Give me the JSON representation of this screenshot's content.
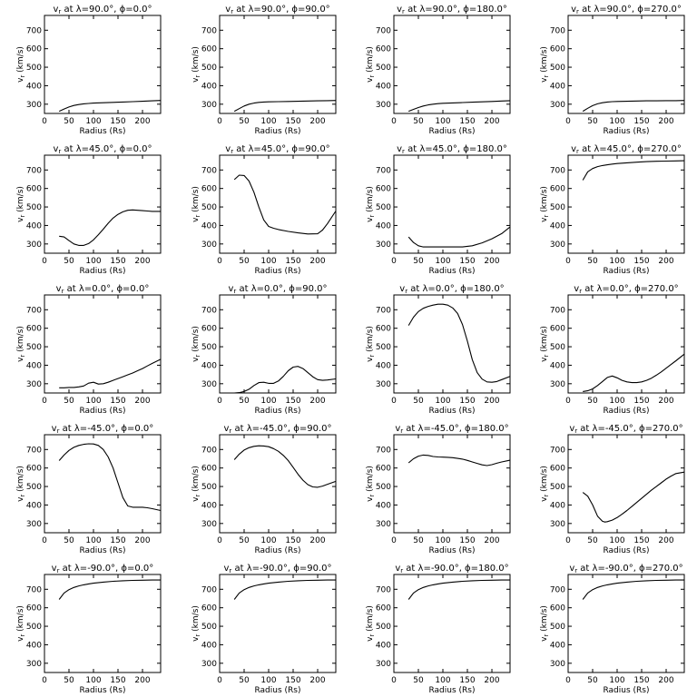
{
  "chart_data": {
    "type": "line",
    "rows": 5,
    "cols": 4,
    "xlabel": "Radius (Rs)",
    "ylabel": "v",
    "ylabel_sub": "r",
    "ylabel_unit": " (km/s)",
    "xlim": [
      0,
      237
    ],
    "ylim": [
      250,
      780
    ],
    "xticks": [
      0,
      50,
      100,
      150,
      200
    ],
    "yticks": [
      300,
      400,
      500,
      600,
      700
    ],
    "title_prefix": "v",
    "title_sub": "r",
    "title_mid": " at λ=",
    "title_sep": ", ϕ=",
    "degree": "°",
    "panels": [
      {
        "lat": "90.0",
        "lon": "0.0",
        "x": [
          30,
          40,
          50,
          60,
          70,
          80,
          90,
          100,
          120,
          140,
          160,
          180,
          200,
          220,
          237
        ],
        "y": [
          262,
          274,
          285,
          293,
          298,
          302,
          304,
          306,
          308,
          310,
          312,
          314,
          316,
          318,
          320
        ]
      },
      {
        "lat": "90.0",
        "lon": "90.0",
        "x": [
          30,
          40,
          50,
          60,
          70,
          80,
          90,
          100,
          120,
          140,
          160,
          180,
          200,
          220,
          237
        ],
        "y": [
          262,
          276,
          290,
          300,
          306,
          310,
          312,
          313,
          314,
          315,
          316,
          317,
          318,
          319,
          320
        ]
      },
      {
        "lat": "90.0",
        "lon": "180.0",
        "x": [
          30,
          40,
          50,
          60,
          70,
          80,
          90,
          100,
          120,
          140,
          160,
          180,
          200,
          220,
          237
        ],
        "y": [
          262,
          272,
          282,
          290,
          296,
          300,
          303,
          305,
          307,
          309,
          311,
          313,
          315,
          317,
          319
        ]
      },
      {
        "lat": "90.0",
        "lon": "270.0",
        "x": [
          30,
          40,
          50,
          60,
          70,
          80,
          90,
          100,
          120,
          140,
          160,
          180,
          200,
          220,
          237
        ],
        "y": [
          262,
          278,
          292,
          302,
          308,
          312,
          314,
          315,
          316,
          317,
          318,
          318,
          319,
          319,
          320
        ]
      },
      {
        "lat": "45.0",
        "lon": "0.0",
        "x": [
          30,
          40,
          50,
          60,
          70,
          80,
          90,
          100,
          110,
          120,
          130,
          140,
          150,
          160,
          170,
          180,
          190,
          200,
          210,
          220,
          237
        ],
        "y": [
          342,
          338,
          318,
          300,
          292,
          292,
          302,
          322,
          350,
          380,
          412,
          440,
          460,
          474,
          482,
          484,
          482,
          480,
          478,
          476,
          476
        ]
      },
      {
        "lat": "45.0",
        "lon": "90.0",
        "x": [
          30,
          40,
          50,
          60,
          70,
          80,
          90,
          100,
          110,
          120,
          140,
          160,
          180,
          200,
          210,
          220,
          237
        ],
        "y": [
          648,
          672,
          670,
          640,
          580,
          500,
          430,
          395,
          385,
          378,
          368,
          360,
          354,
          355,
          375,
          410,
          478
        ]
      },
      {
        "lat": "45.0",
        "lon": "180.0",
        "x": [
          30,
          40,
          50,
          60,
          70,
          80,
          100,
          120,
          140,
          160,
          180,
          200,
          220,
          237
        ],
        "y": [
          338,
          308,
          290,
          284,
          284,
          284,
          284,
          284,
          284,
          290,
          306,
          328,
          356,
          392
        ]
      },
      {
        "lat": "45.0",
        "lon": "270.0",
        "x": [
          30,
          40,
          50,
          60,
          70,
          80,
          90,
          100,
          120,
          140,
          160,
          180,
          200,
          220,
          237
        ],
        "y": [
          645,
          690,
          708,
          718,
          724,
          728,
          732,
          735,
          739,
          742,
          745,
          747,
          748,
          749,
          750
        ]
      },
      {
        "lat": "0.0",
        "lon": "0.0",
        "x": [
          30,
          40,
          50,
          60,
          70,
          80,
          90,
          100,
          110,
          120,
          130,
          140,
          150,
          160,
          170,
          180,
          190,
          200,
          210,
          220,
          237
        ],
        "y": [
          278,
          278,
          280,
          280,
          283,
          288,
          303,
          308,
          298,
          300,
          308,
          318,
          328,
          338,
          348,
          358,
          370,
          382,
          396,
          410,
          432
        ]
      },
      {
        "lat": "0.0",
        "lon": "90.0",
        "x": [
          30,
          40,
          50,
          60,
          70,
          80,
          90,
          100,
          110,
          120,
          130,
          140,
          150,
          160,
          170,
          180,
          190,
          200,
          210,
          220,
          237
        ],
        "y": [
          250,
          252,
          258,
          270,
          290,
          306,
          308,
          302,
          302,
          315,
          340,
          370,
          390,
          394,
          382,
          360,
          338,
          322,
          318,
          320,
          326
        ]
      },
      {
        "lat": "0.0",
        "lon": "180.0",
        "x": [
          30,
          40,
          50,
          60,
          70,
          80,
          90,
          100,
          110,
          120,
          130,
          140,
          150,
          160,
          170,
          180,
          190,
          200,
          210,
          220,
          237
        ],
        "y": [
          615,
          660,
          690,
          708,
          718,
          725,
          730,
          730,
          725,
          710,
          680,
          620,
          530,
          430,
          360,
          325,
          310,
          308,
          312,
          322,
          340
        ]
      },
      {
        "lat": "0.0",
        "lon": "270.0",
        "x": [
          30,
          40,
          50,
          60,
          70,
          80,
          90,
          100,
          110,
          120,
          130,
          140,
          150,
          160,
          170,
          180,
          190,
          200,
          210,
          220,
          237
        ],
        "y": [
          258,
          262,
          272,
          290,
          312,
          334,
          342,
          332,
          318,
          310,
          306,
          306,
          310,
          318,
          330,
          346,
          364,
          384,
          404,
          424,
          460
        ]
      },
      {
        "lat": "-45.0",
        "lon": "0.0",
        "x": [
          30,
          40,
          50,
          60,
          70,
          80,
          90,
          100,
          110,
          120,
          130,
          140,
          150,
          160,
          170,
          180,
          190,
          200,
          210,
          220,
          237
        ],
        "y": [
          640,
          670,
          695,
          712,
          722,
          728,
          731,
          730,
          722,
          700,
          660,
          600,
          520,
          440,
          395,
          388,
          388,
          388,
          385,
          380,
          370
        ]
      },
      {
        "lat": "-45.0",
        "lon": "90.0",
        "x": [
          30,
          40,
          50,
          60,
          70,
          80,
          90,
          100,
          110,
          120,
          130,
          140,
          150,
          160,
          170,
          180,
          190,
          200,
          210,
          220,
          237
        ],
        "y": [
          645,
          675,
          697,
          710,
          717,
          720,
          719,
          715,
          705,
          690,
          668,
          640,
          604,
          566,
          534,
          510,
          498,
          496,
          502,
          512,
          528
        ]
      },
      {
        "lat": "-45.0",
        "lon": "180.0",
        "x": [
          30,
          40,
          50,
          60,
          70,
          80,
          90,
          100,
          110,
          120,
          130,
          140,
          150,
          160,
          170,
          180,
          190,
          200,
          210,
          220,
          237
        ],
        "y": [
          628,
          650,
          664,
          670,
          668,
          662,
          660,
          659,
          658,
          656,
          652,
          648,
          641,
          633,
          625,
          617,
          613,
          618,
          626,
          633,
          642
        ]
      },
      {
        "lat": "-45.0",
        "lon": "270.0",
        "x": [
          30,
          40,
          50,
          60,
          70,
          75,
          80,
          90,
          100,
          110,
          120,
          130,
          140,
          150,
          160,
          170,
          180,
          190,
          200,
          210,
          220,
          237
        ],
        "y": [
          468,
          448,
          400,
          340,
          312,
          308,
          310,
          318,
          332,
          350,
          370,
          392,
          414,
          436,
          458,
          480,
          500,
          520,
          540,
          556,
          570,
          578
        ]
      },
      {
        "lat": "-90.0",
        "lon": "0.0",
        "x": [
          30,
          40,
          50,
          60,
          70,
          80,
          90,
          100,
          120,
          140,
          160,
          180,
          200,
          220,
          237
        ],
        "y": [
          645,
          680,
          698,
          710,
          718,
          724,
          729,
          733,
          739,
          743,
          746,
          748,
          749,
          750,
          750
        ]
      },
      {
        "lat": "-90.0",
        "lon": "90.0",
        "x": [
          30,
          40,
          50,
          60,
          70,
          80,
          90,
          100,
          120,
          140,
          160,
          180,
          200,
          220,
          237
        ],
        "y": [
          645,
          680,
          698,
          710,
          718,
          724,
          729,
          733,
          739,
          743,
          746,
          748,
          749,
          750,
          750
        ]
      },
      {
        "lat": "-90.0",
        "lon": "180.0",
        "x": [
          30,
          40,
          50,
          60,
          70,
          80,
          90,
          100,
          120,
          140,
          160,
          180,
          200,
          220,
          237
        ],
        "y": [
          645,
          680,
          698,
          710,
          718,
          724,
          729,
          733,
          739,
          743,
          746,
          748,
          749,
          750,
          750
        ]
      },
      {
        "lat": "-90.0",
        "lon": "270.0",
        "x": [
          30,
          40,
          50,
          60,
          70,
          80,
          90,
          100,
          120,
          140,
          160,
          180,
          200,
          220,
          237
        ],
        "y": [
          645,
          680,
          698,
          710,
          718,
          724,
          729,
          733,
          739,
          743,
          746,
          748,
          749,
          750,
          750
        ]
      }
    ]
  }
}
